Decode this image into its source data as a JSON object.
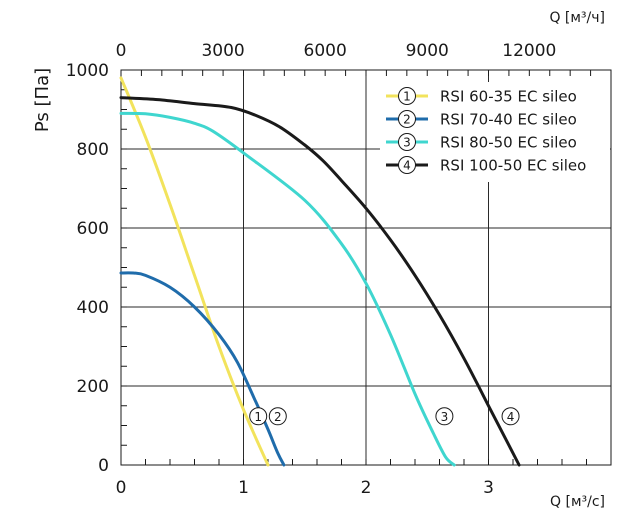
{
  "chart_data": {
    "type": "line",
    "xlabel": "Q [м³/с]",
    "x2label": "Q [м³/ч]",
    "ylabel": "Ps [Па]",
    "xlim": [
      0,
      4
    ],
    "ylim": [
      0,
      1000
    ],
    "x2lim": [
      0,
      14400
    ],
    "xticks": [
      "0",
      "1",
      "2",
      "3"
    ],
    "x2ticks": [
      "0",
      "3000",
      "6000",
      "9000",
      "12000"
    ],
    "yticks": [
      "0",
      "200",
      "400",
      "600",
      "800",
      "1000"
    ],
    "grid": true,
    "legend_position": "top-right",
    "series": [
      {
        "name": "RSI 60-35 EC sileo",
        "marker": "1",
        "color": "#f2e35c",
        "marker_at": [
          1.12,
          60
        ],
        "points": [
          [
            0,
            980
          ],
          [
            0.2,
            830
          ],
          [
            0.4,
            660
          ],
          [
            0.6,
            480
          ],
          [
            0.8,
            300
          ],
          [
            1.0,
            140
          ],
          [
            1.2,
            0
          ]
        ]
      },
      {
        "name": "RSI 70-40 EC sileo",
        "marker": "2",
        "color": "#1f6cab",
        "marker_at": [
          1.28,
          60
        ],
        "points": [
          [
            0,
            486
          ],
          [
            0.1,
            486
          ],
          [
            0.2,
            480
          ],
          [
            0.4,
            450
          ],
          [
            0.6,
            400
          ],
          [
            0.8,
            330
          ],
          [
            0.95,
            260
          ],
          [
            1.1,
            160
          ],
          [
            1.2,
            90
          ],
          [
            1.28,
            30
          ],
          [
            1.33,
            0
          ]
        ]
      },
      {
        "name": "RSI 80-50 EC sileo",
        "marker": "3",
        "color": "#3fd6cf",
        "marker_at": [
          2.64,
          60
        ],
        "points": [
          [
            0,
            890
          ],
          [
            0.2,
            889
          ],
          [
            0.4,
            880
          ],
          [
            0.6,
            865
          ],
          [
            0.75,
            845
          ],
          [
            1.0,
            790
          ],
          [
            1.5,
            670
          ],
          [
            1.8,
            560
          ],
          [
            2.0,
            460
          ],
          [
            2.2,
            330
          ],
          [
            2.4,
            180
          ],
          [
            2.55,
            80
          ],
          [
            2.65,
            20
          ],
          [
            2.72,
            0
          ]
        ]
      },
      {
        "name": "RSI 100-50 EC sileo",
        "marker": "4",
        "color": "#1a1a1a",
        "marker_at": [
          3.18,
          60
        ],
        "points": [
          [
            0,
            930
          ],
          [
            0.3,
            925
          ],
          [
            0.6,
            915
          ],
          [
            0.9,
            905
          ],
          [
            1.1,
            885
          ],
          [
            1.3,
            855
          ],
          [
            1.5,
            810
          ],
          [
            1.65,
            770
          ],
          [
            1.8,
            720
          ],
          [
            2.0,
            650
          ],
          [
            2.2,
            570
          ],
          [
            2.4,
            480
          ],
          [
            2.6,
            380
          ],
          [
            2.8,
            270
          ],
          [
            3.0,
            150
          ],
          [
            3.15,
            60
          ],
          [
            3.25,
            0
          ]
        ]
      }
    ]
  }
}
